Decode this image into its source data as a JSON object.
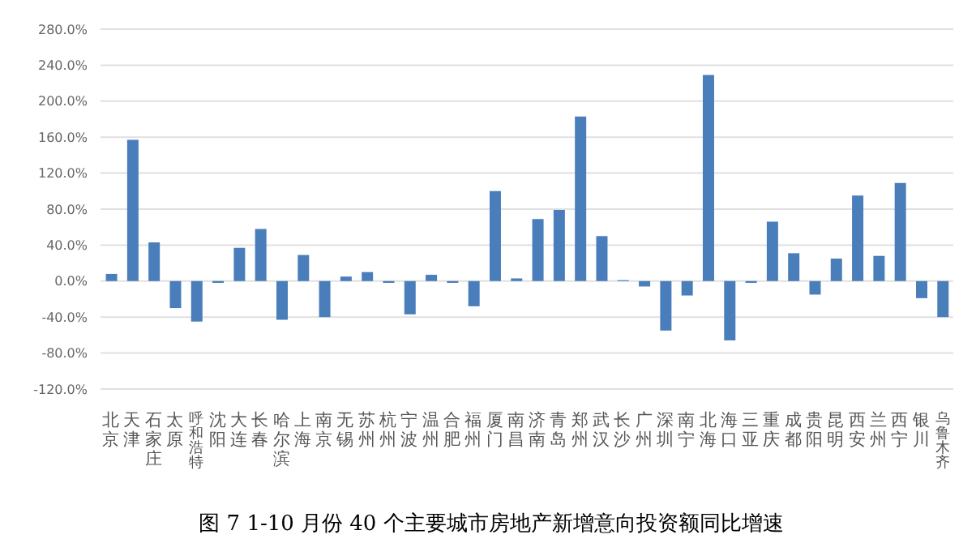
{
  "chart_data": {
    "type": "bar",
    "title": "图 7   1-10 月份 40 个主要城市房地产新增意向投资额同比增速",
    "categories": [
      "北京",
      "天津",
      "石家庄",
      "太原",
      "呼和浩特",
      "沈阳",
      "大连",
      "长春",
      "哈尔滨",
      "上海",
      "南京",
      "无锡",
      "苏州",
      "杭州",
      "宁波",
      "温州",
      "合肥",
      "福州",
      "厦门",
      "南昌",
      "济南",
      "青岛",
      "郑州",
      "武汉",
      "长沙",
      "广州",
      "深圳",
      "南宁",
      "北海",
      "海口",
      "三亚",
      "重庆",
      "成都",
      "贵阳",
      "昆明",
      "西安",
      "兰州",
      "西宁",
      "银川",
      "乌鲁木齐"
    ],
    "values": [
      8,
      157,
      43,
      -30,
      -45,
      -2,
      37,
      58,
      -43,
      29,
      -40,
      5,
      10,
      -2,
      -37,
      7,
      -2,
      -28,
      100,
      3,
      69,
      79,
      183,
      50,
      1,
      -6,
      -55,
      -16,
      229,
      -66,
      -2,
      66,
      31,
      -15,
      25,
      95,
      28,
      109,
      -19,
      -40
    ],
    "color": "#4a7ebb",
    "ylim": [
      -120,
      280
    ],
    "yticks": [
      {
        "value": -120,
        "label": "-120.0%"
      },
      {
        "value": -80,
        "label": "-80.0%"
      },
      {
        "value": -40,
        "label": "-40.0%"
      },
      {
        "value": 0,
        "label": "0.0%"
      },
      {
        "value": 40,
        "label": "40.0%"
      },
      {
        "value": 80,
        "label": "80.0%"
      },
      {
        "value": 120,
        "label": "120.0%"
      },
      {
        "value": 160,
        "label": "160.0%"
      },
      {
        "value": 200,
        "label": "200.0%"
      },
      {
        "value": 240,
        "label": "240.0%"
      },
      {
        "value": 280,
        "label": "280.0%"
      }
    ],
    "grid": "y"
  }
}
